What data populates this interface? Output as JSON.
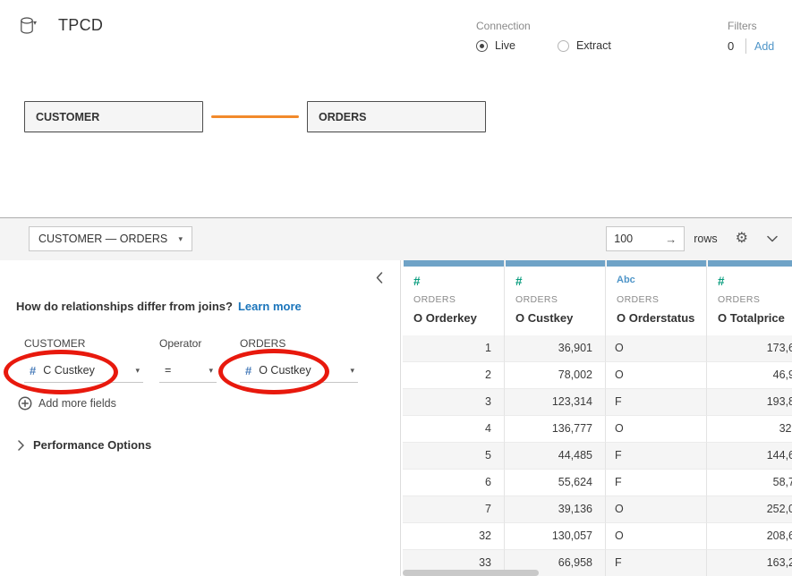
{
  "header": {
    "title": "TPCD",
    "connection": {
      "label": "Connection",
      "options": [
        {
          "label": "Live",
          "selected": true
        },
        {
          "label": "Extract",
          "selected": false
        }
      ]
    },
    "filters": {
      "label": "Filters",
      "count": "0",
      "add_label": "Add"
    }
  },
  "canvas": {
    "tables": [
      {
        "name": "CUSTOMER"
      },
      {
        "name": "ORDERS"
      }
    ]
  },
  "panel": {
    "relationship_selector": "CUSTOMER  —  ORDERS",
    "row_count_value": "100",
    "rows_label": "rows"
  },
  "relationship_editor": {
    "question": "How do relationships differ from joins?",
    "learn_more_label": "Learn more",
    "left_table_label": "CUSTOMER",
    "operator_label": "Operator",
    "right_table_label": "ORDERS",
    "left_field": "C Custkey",
    "operator_value": "=",
    "right_field": "O Custkey",
    "add_more_fields_label": "Add more fields",
    "performance_options_label": "Performance Options"
  },
  "grid": {
    "columns": [
      {
        "type": "number",
        "type_icon": "#",
        "table": "ORDERS",
        "field": "O Orderkey"
      },
      {
        "type": "number",
        "type_icon": "#",
        "table": "ORDERS",
        "field": "O Custkey"
      },
      {
        "type": "string",
        "type_icon": "Abc",
        "table": "ORDERS",
        "field": "O Orderstatus"
      },
      {
        "type": "number",
        "type_icon": "#",
        "table": "ORDERS",
        "field": "O Totalprice"
      }
    ],
    "rows": [
      [
        "1",
        "36,901",
        "O",
        "173,6"
      ],
      [
        "2",
        "78,002",
        "O",
        "46,9"
      ],
      [
        "3",
        "123,314",
        "F",
        "193,8"
      ],
      [
        "4",
        "136,777",
        "O",
        "32,"
      ],
      [
        "5",
        "44,485",
        "F",
        "144,6"
      ],
      [
        "6",
        "55,624",
        "F",
        "58,7"
      ],
      [
        "7",
        "39,136",
        "O",
        "252,0"
      ],
      [
        "32",
        "130,057",
        "O",
        "208,6"
      ],
      [
        "33",
        "66,958",
        "F",
        "163,2"
      ]
    ]
  },
  "colors": {
    "accent_orange": "#F28A2B",
    "link_blue": "#1B75BB",
    "add_link_blue": "#4F95C8",
    "field_number_blue": "#4A7DBA",
    "grid_number_teal": "#089C7E",
    "grid_string_blue": "#4F95C8",
    "column_bar_blue": "#6FA3C7",
    "annotation_red": "#E8190D"
  }
}
